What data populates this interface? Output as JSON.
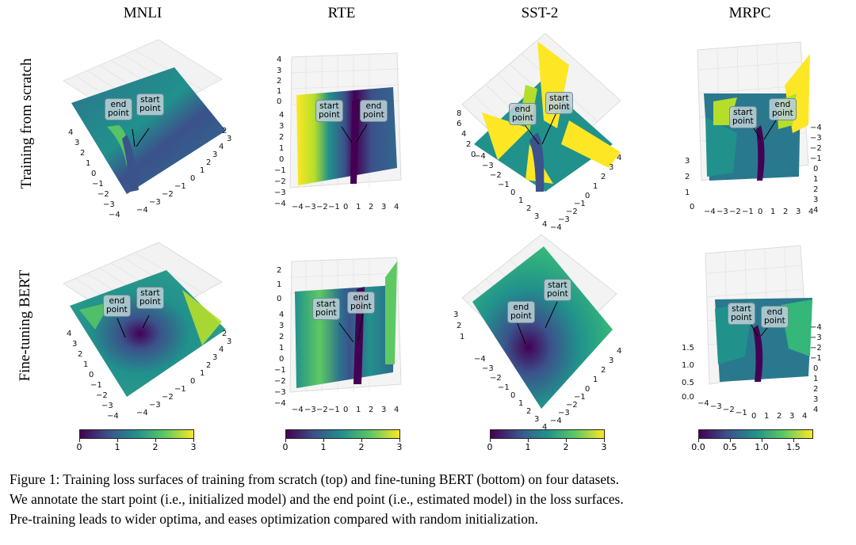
{
  "figure": {
    "columns": [
      "MNLI",
      "RTE",
      "SST-2",
      "MRPC"
    ],
    "rows": [
      "Training from scratch",
      "Fine-tuning BERT"
    ],
    "annotations": {
      "start": "start\npoint",
      "end": "end\npoint"
    },
    "start_label": "start",
    "end_label": "end",
    "point_label": "point",
    "colormap": [
      "#440154",
      "#3b528b",
      "#21918c",
      "#5ec962",
      "#fde725"
    ],
    "panels": [
      {
        "id": "mnli-scratch",
        "z_ticks": [],
        "left_ticks": [
          "4",
          "3",
          "2",
          "1",
          "0",
          "−1",
          "−2",
          "−3",
          "−4"
        ],
        "right_ticks": [
          "−4",
          "−3",
          "−2",
          "−1",
          "0",
          "1",
          "2",
          "3",
          "4"
        ],
        "extra_ticks": [
          "3",
          "2"
        ]
      },
      {
        "id": "rte-scratch",
        "z_ticks": [
          "4",
          "3",
          "2",
          "1",
          "0"
        ],
        "left_ticks": [
          "4",
          "3",
          "2",
          "1",
          "0",
          "−1",
          "−2",
          "−3",
          "−4"
        ],
        "bottom_ticks": [
          "−4",
          "−3",
          "−2",
          "−1",
          "0",
          "1",
          "2",
          "3",
          "4"
        ]
      },
      {
        "id": "sst2-scratch",
        "z_ticks": [
          "8",
          "6",
          "4",
          "2",
          "0"
        ],
        "left_ticks": [
          "−4",
          "−3",
          "−2",
          "−1",
          "0",
          "1",
          "2",
          "3",
          "4"
        ],
        "right_ticks": [
          "4",
          "3",
          "2",
          "1",
          "0",
          "−1",
          "−2",
          "−3",
          "−4"
        ]
      },
      {
        "id": "mrpc-scratch",
        "z_ticks": [
          "3",
          "2",
          "1",
          "0"
        ],
        "right_ticks": [
          "−4",
          "−3",
          "−2",
          "−1",
          "0",
          "1",
          "2",
          "3",
          "4"
        ],
        "bottom_ticks": [
          "−4",
          "−3",
          "−2",
          "−1",
          "0",
          "1",
          "2",
          "3",
          "4"
        ]
      },
      {
        "id": "mnli-finetune",
        "z_ticks": [],
        "left_ticks": [
          "4",
          "3",
          "2",
          "1",
          "0",
          "−1",
          "−2",
          "−3",
          "−4"
        ],
        "right_ticks": [
          "−4",
          "−3",
          "−2",
          "−1",
          "0",
          "1",
          "2",
          "3",
          "4"
        ],
        "extra_ticks": [
          "3",
          "2"
        ]
      },
      {
        "id": "rte-finetune",
        "z_ticks": [
          "2",
          "1",
          "0"
        ],
        "left_ticks": [
          "4",
          "3",
          "2",
          "1",
          "0",
          "−1",
          "−2",
          "−3",
          "−4"
        ],
        "bottom_ticks": [
          "−4",
          "−3",
          "−2",
          "−1",
          "0",
          "1",
          "2",
          "3",
          "4"
        ]
      },
      {
        "id": "sst2-finetune",
        "z_ticks": [
          "3",
          "2",
          "1"
        ],
        "left_ticks": [
          "−4",
          "−3",
          "−2",
          "−1",
          "0",
          "1",
          "2",
          "3",
          "4"
        ],
        "right_ticks": [
          "4",
          "3",
          "2",
          "1",
          "0",
          "−1",
          "−2",
          "−3",
          "−4"
        ]
      },
      {
        "id": "mrpc-finetune",
        "z_ticks": [
          "1.5",
          "1.0",
          "0.5",
          "0.0"
        ],
        "right_ticks": [
          "−4",
          "−3",
          "−2",
          "−1",
          "0",
          "1",
          "2",
          "3",
          "4"
        ],
        "bottom_ticks": [
          "−4",
          "−3",
          "−2",
          "−1",
          "0",
          "1",
          "2",
          "3",
          "4"
        ]
      }
    ],
    "colorbars": [
      {
        "ticks": [
          "0",
          "1",
          "2",
          "3"
        ],
        "range": [
          0,
          3
        ]
      },
      {
        "ticks": [
          "0",
          "1",
          "2",
          "3"
        ],
        "range": [
          0,
          3
        ]
      },
      {
        "ticks": [
          "0",
          "1",
          "2",
          "3"
        ],
        "range": [
          0,
          3
        ]
      },
      {
        "ticks": [
          "0.0",
          "0.5",
          "1.0",
          "1.5"
        ],
        "range": [
          0,
          1.8
        ]
      }
    ]
  },
  "caption": {
    "line1": "Figure 1: Training loss surfaces of training from scratch (top) and fine-tuning BERT (bottom) on four datasets.",
    "line2": "We annotate the start point (i.e., initialized model) and the end point (i.e., estimated model) in the loss surfaces.",
    "line3": "Pre-training leads to wider optima, and eases optimization compared with random initialization."
  }
}
